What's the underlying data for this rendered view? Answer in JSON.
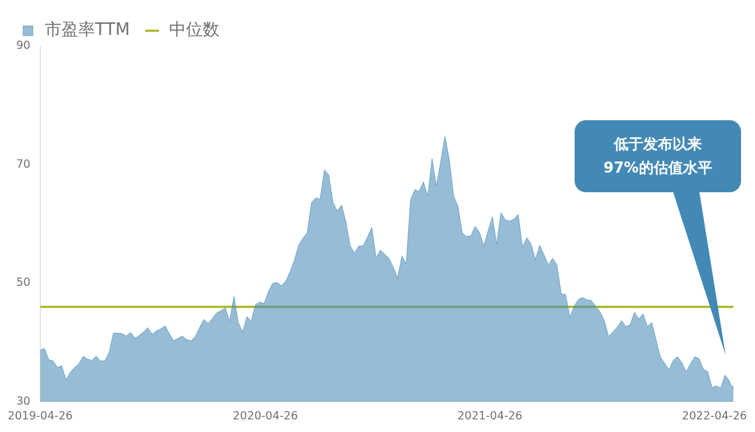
{
  "chart_data": {
    "type": "area",
    "legend": "top left",
    "grid": false,
    "marker": "none",
    "xlim": [
      "2019-04-26",
      "2022-05-27"
    ],
    "xticks": [
      "2019-04-26",
      "2020-04-26",
      "2021-04-26",
      "2022-04-26"
    ],
    "ylim": [
      30,
      90
    ],
    "yticks": [
      30,
      50,
      70,
      90
    ],
    "ref_lines": [
      {
        "axis": "y",
        "value": 46,
        "label": "中位数",
        "color": "#a5b51d"
      }
    ],
    "annotations": [
      "低于发布以来\n97%的估值水平"
    ],
    "x": [
      "2019-04-26",
      "2019-05-03",
      "2019-05-10",
      "2019-05-17",
      "2019-05-24",
      "2019-05-31",
      "2019-06-07",
      "2019-06-14",
      "2019-06-21",
      "2019-06-28",
      "2019-07-05",
      "2019-07-12",
      "2019-07-19",
      "2019-07-26",
      "2019-08-02",
      "2019-08-09",
      "2019-08-16",
      "2019-08-23",
      "2019-08-30",
      "2019-09-06",
      "2019-09-13",
      "2019-09-20",
      "2019-09-27",
      "2019-10-04",
      "2019-10-11",
      "2019-10-18",
      "2019-10-25",
      "2019-11-01",
      "2019-11-08",
      "2019-11-15",
      "2019-11-22",
      "2019-11-29",
      "2019-12-06",
      "2019-12-13",
      "2019-12-20",
      "2019-12-27",
      "2020-01-03",
      "2020-01-10",
      "2020-01-17",
      "2020-01-24",
      "2020-01-31",
      "2020-02-07",
      "2020-02-14",
      "2020-02-21",
      "2020-02-28",
      "2020-03-06",
      "2020-03-13",
      "2020-03-20",
      "2020-03-27",
      "2020-04-03",
      "2020-04-10",
      "2020-04-17",
      "2020-04-24",
      "2020-05-01",
      "2020-05-08",
      "2020-05-15",
      "2020-05-22",
      "2020-05-29",
      "2020-06-05",
      "2020-06-12",
      "2020-06-19",
      "2020-06-26",
      "2020-07-03",
      "2020-07-10",
      "2020-07-17",
      "2020-07-24",
      "2020-07-31",
      "2020-08-07",
      "2020-08-14",
      "2020-08-21",
      "2020-08-28",
      "2020-09-04",
      "2020-09-11",
      "2020-09-18",
      "2020-09-25",
      "2020-10-02",
      "2020-10-09",
      "2020-10-16",
      "2020-10-23",
      "2020-10-30",
      "2020-11-06",
      "2020-11-13",
      "2020-11-20",
      "2020-11-27",
      "2020-12-04",
      "2020-12-11",
      "2020-12-18",
      "2020-12-25",
      "2021-01-01",
      "2021-01-08",
      "2021-01-15",
      "2021-01-22",
      "2021-01-29",
      "2021-02-05",
      "2021-02-12",
      "2021-02-19",
      "2021-02-26",
      "2021-03-05",
      "2021-03-12",
      "2021-03-19",
      "2021-03-26",
      "2021-04-02",
      "2021-04-09",
      "2021-04-16",
      "2021-04-23",
      "2021-04-30",
      "2021-05-07",
      "2021-05-14",
      "2021-05-21",
      "2021-05-28",
      "2021-06-04",
      "2021-06-11",
      "2021-06-18",
      "2021-06-25",
      "2021-07-02",
      "2021-07-09",
      "2021-07-16",
      "2021-07-23",
      "2021-07-30",
      "2021-08-06",
      "2021-08-13",
      "2021-08-20",
      "2021-08-27",
      "2021-09-03",
      "2021-09-10",
      "2021-09-17",
      "2021-09-24",
      "2021-10-01",
      "2021-10-08",
      "2021-10-15",
      "2021-10-22",
      "2021-10-29",
      "2021-11-05",
      "2021-11-12",
      "2021-11-19",
      "2021-11-26",
      "2021-12-03",
      "2021-12-10",
      "2021-12-17",
      "2021-12-24",
      "2021-12-31",
      "2022-01-07",
      "2022-01-14",
      "2022-01-21",
      "2022-01-28",
      "2022-02-04",
      "2022-02-11",
      "2022-02-18",
      "2022-02-25",
      "2022-03-04",
      "2022-03-11",
      "2022-03-18",
      "2022-03-25",
      "2022-04-01",
      "2022-04-08",
      "2022-04-15",
      "2022-04-22",
      "2022-04-29",
      "2022-05-06",
      "2022-05-13",
      "2022-05-20",
      "2022-05-25",
      "2022-05-27"
    ],
    "series": [
      {
        "name": "市盈率TTM",
        "color": "#3f87b3",
        "values": [
          38.7,
          39.0,
          37.1,
          36.9,
          35.8,
          36.1,
          33.7,
          35.0,
          35.8,
          36.4,
          37.7,
          37.2,
          37.0,
          37.7,
          36.9,
          36.9,
          38.3,
          41.6,
          41.6,
          41.5,
          41.1,
          41.7,
          40.7,
          41.2,
          41.8,
          42.5,
          41.4,
          42.0,
          42.3,
          42.8,
          41.5,
          40.3,
          40.7,
          41.1,
          40.5,
          40.3,
          41.0,
          42.5,
          43.9,
          43.2,
          44.1,
          45.0,
          45.4,
          45.8,
          43.6,
          47.8,
          43.4,
          41.8,
          44.4,
          43.6,
          46.4,
          46.8,
          46.6,
          48.6,
          50.0,
          50.1,
          49.6,
          50.3,
          51.9,
          53.8,
          56.4,
          57.6,
          58.5,
          63.6,
          64.4,
          64.2,
          69.1,
          68.3,
          63.6,
          62.2,
          63.2,
          60.3,
          56.3,
          55.1,
          56.3,
          56.3,
          57.8,
          59.4,
          54.3,
          55.6,
          54.9,
          54.2,
          52.7,
          50.9,
          54.6,
          53.3,
          64.1,
          65.8,
          65.5,
          67.1,
          64.7,
          71.0,
          66.4,
          70.5,
          74.8,
          70.9,
          64.8,
          63.0,
          58.5,
          57.9,
          58.0,
          59.6,
          58.6,
          56.3,
          58.8,
          61.2,
          56.6,
          61.9,
          60.7,
          60.5,
          60.8,
          61.6,
          56.1,
          57.7,
          56.6,
          54.0,
          56.4,
          54.8,
          53.1,
          54.2,
          53.1,
          48.2,
          48.1,
          44.3,
          46.1,
          47.3,
          47.6,
          47.2,
          47.1,
          46.1,
          45.2,
          43.7,
          41.0,
          41.8,
          42.6,
          43.7,
          42.7,
          43.0,
          45.1,
          44.0,
          44.8,
          42.7,
          43.4,
          40.5,
          37.6,
          36.5,
          35.4,
          37.0,
          37.6,
          36.6,
          35.1,
          36.4,
          37.6,
          37.3,
          35.5,
          35.1,
          32.4,
          32.7,
          32.3,
          34.5,
          33.6,
          32.3,
          32.9
        ]
      }
    ]
  }
}
